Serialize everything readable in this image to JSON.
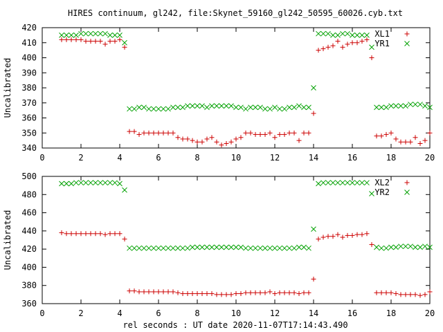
{
  "title": "HIRES continuum, gl242, file:Skynet_59160_gl242_50595_60026.cyb.txt",
  "xlabel": "rel seconds : UT date 2020-11-07T17:14:43.490",
  "colors": {
    "red": "#cc0000",
    "green": "#00a000",
    "axis": "#000000"
  },
  "chart_data": [
    {
      "type": "scatter",
      "ylabel": "Uncalibrated",
      "xlim": [
        0,
        20
      ],
      "ylim": [
        340,
        420
      ],
      "xticks": [
        0,
        2,
        4,
        6,
        8,
        10,
        12,
        14,
        16,
        18,
        20
      ],
      "yticks": [
        340,
        350,
        360,
        370,
        380,
        390,
        400,
        410,
        420
      ],
      "legend_position": "top-right",
      "series": [
        {
          "name": "XL1",
          "marker": "plus",
          "color": "#cc0000",
          "x": [
            1.0,
            1.25,
            1.5,
            1.75,
            2.0,
            2.25,
            2.5,
            2.75,
            3.0,
            3.25,
            3.5,
            3.75,
            4.0,
            4.25,
            4.5,
            4.75,
            5.0,
            5.25,
            5.5,
            5.75,
            6.0,
            6.25,
            6.5,
            6.75,
            7.0,
            7.25,
            7.5,
            7.75,
            8.0,
            8.25,
            8.5,
            8.75,
            9.0,
            9.25,
            9.5,
            9.75,
            10.0,
            10.25,
            10.5,
            10.75,
            11.0,
            11.25,
            11.5,
            11.75,
            12.0,
            12.25,
            12.5,
            12.75,
            13.0,
            13.25,
            13.5,
            13.75,
            14.0,
            14.25,
            14.5,
            14.75,
            15.0,
            15.25,
            15.5,
            15.75,
            16.0,
            16.25,
            16.5,
            16.75,
            17.0,
            17.25,
            17.5,
            17.75,
            18.0,
            18.25,
            18.5,
            18.75,
            19.0,
            19.25,
            19.5,
            19.75,
            20.0
          ],
          "y": [
            412,
            412,
            412,
            412,
            412,
            411,
            411,
            411,
            411,
            409,
            411,
            411,
            412,
            407,
            351,
            351,
            349,
            350,
            350,
            350,
            350,
            350,
            350,
            350,
            347,
            346,
            346,
            345,
            344,
            344,
            346,
            347,
            344,
            342,
            343,
            344,
            346,
            347,
            350,
            350,
            349,
            349,
            349,
            350,
            347,
            349,
            349,
            350,
            350,
            345,
            350,
            350,
            363,
            405,
            406,
            407,
            408,
            411,
            407,
            409,
            410,
            410,
            411,
            412,
            400,
            348,
            348,
            349,
            350,
            346,
            344,
            344,
            344,
            347,
            343,
            345,
            350
          ]
        },
        {
          "name": "YR1",
          "marker": "cross",
          "color": "#00a000",
          "x": [
            1.0,
            1.25,
            1.5,
            1.75,
            2.0,
            2.25,
            2.5,
            2.75,
            3.0,
            3.25,
            3.5,
            3.75,
            4.0,
            4.25,
            4.5,
            4.75,
            5.0,
            5.25,
            5.5,
            5.75,
            6.0,
            6.25,
            6.5,
            6.75,
            7.0,
            7.25,
            7.5,
            7.75,
            8.0,
            8.25,
            8.5,
            8.75,
            9.0,
            9.25,
            9.5,
            9.75,
            10.0,
            10.25,
            10.5,
            10.75,
            11.0,
            11.25,
            11.5,
            11.75,
            12.0,
            12.25,
            12.5,
            12.75,
            13.0,
            13.25,
            13.5,
            13.75,
            14.0,
            14.25,
            14.5,
            14.75,
            15.0,
            15.25,
            15.5,
            15.75,
            16.0,
            16.25,
            16.5,
            16.75,
            17.0,
            17.25,
            17.5,
            17.75,
            18.0,
            18.25,
            18.5,
            18.75,
            19.0,
            19.25,
            19.5,
            19.75,
            20.0
          ],
          "y": [
            415,
            415,
            415,
            415,
            416,
            416,
            416,
            416,
            416,
            416,
            415,
            415,
            415,
            410,
            366,
            366,
            367,
            367,
            366,
            366,
            366,
            366,
            366,
            367,
            367,
            367,
            368,
            368,
            368,
            368,
            367,
            368,
            368,
            368,
            368,
            368,
            367,
            367,
            366,
            367,
            367,
            367,
            366,
            366,
            367,
            366,
            366,
            367,
            367,
            368,
            367,
            367,
            380,
            416,
            416,
            416,
            415,
            415,
            416,
            416,
            415,
            415,
            415,
            415,
            407,
            367,
            367,
            367,
            368,
            368,
            368,
            368,
            369,
            369,
            369,
            368,
            367
          ]
        }
      ]
    },
    {
      "type": "scatter",
      "ylabel": "Uncalibrated",
      "xlim": [
        0,
        20
      ],
      "ylim": [
        360,
        500
      ],
      "xticks": [
        0,
        2,
        4,
        6,
        8,
        10,
        12,
        14,
        16,
        18,
        20
      ],
      "yticks": [
        360,
        380,
        400,
        420,
        440,
        460,
        480,
        500
      ],
      "legend_position": "top-right",
      "series": [
        {
          "name": "XL2",
          "marker": "plus",
          "color": "#cc0000",
          "x": [
            1.0,
            1.25,
            1.5,
            1.75,
            2.0,
            2.25,
            2.5,
            2.75,
            3.0,
            3.25,
            3.5,
            3.75,
            4.0,
            4.25,
            4.5,
            4.75,
            5.0,
            5.25,
            5.5,
            5.75,
            6.0,
            6.25,
            6.5,
            6.75,
            7.0,
            7.25,
            7.5,
            7.75,
            8.0,
            8.25,
            8.5,
            8.75,
            9.0,
            9.25,
            9.5,
            9.75,
            10.0,
            10.25,
            10.5,
            10.75,
            11.0,
            11.25,
            11.5,
            11.75,
            12.0,
            12.25,
            12.5,
            12.75,
            13.0,
            13.25,
            13.5,
            13.75,
            14.0,
            14.25,
            14.5,
            14.75,
            15.0,
            15.25,
            15.5,
            15.75,
            16.0,
            16.25,
            16.5,
            16.75,
            17.0,
            17.25,
            17.5,
            17.75,
            18.0,
            18.25,
            18.5,
            18.75,
            19.0,
            19.25,
            19.5,
            19.75,
            20.0
          ],
          "y": [
            438,
            437,
            437,
            437,
            437,
            437,
            437,
            437,
            437,
            436,
            437,
            437,
            437,
            431,
            374,
            374,
            373,
            373,
            373,
            373,
            373,
            373,
            373,
            373,
            372,
            371,
            371,
            371,
            371,
            371,
            371,
            371,
            370,
            370,
            370,
            370,
            371,
            371,
            372,
            372,
            372,
            372,
            372,
            373,
            371,
            372,
            372,
            372,
            372,
            371,
            372,
            372,
            387,
            431,
            433,
            434,
            434,
            436,
            433,
            435,
            435,
            436,
            436,
            437,
            425,
            372,
            372,
            372,
            372,
            371,
            370,
            370,
            370,
            370,
            369,
            370,
            373
          ]
        },
        {
          "name": "YR2",
          "marker": "cross",
          "color": "#00a000",
          "x": [
            1.0,
            1.25,
            1.5,
            1.75,
            2.0,
            2.25,
            2.5,
            2.75,
            3.0,
            3.25,
            3.5,
            3.75,
            4.0,
            4.25,
            4.5,
            4.75,
            5.0,
            5.25,
            5.5,
            5.75,
            6.0,
            6.25,
            6.5,
            6.75,
            7.0,
            7.25,
            7.5,
            7.75,
            8.0,
            8.25,
            8.5,
            8.75,
            9.0,
            9.25,
            9.5,
            9.75,
            10.0,
            10.25,
            10.5,
            10.75,
            11.0,
            11.25,
            11.5,
            11.75,
            12.0,
            12.25,
            12.5,
            12.75,
            13.0,
            13.25,
            13.5,
            13.75,
            14.0,
            14.25,
            14.5,
            14.75,
            15.0,
            15.25,
            15.5,
            15.75,
            16.0,
            16.25,
            16.5,
            16.75,
            17.0,
            17.25,
            17.5,
            17.75,
            18.0,
            18.25,
            18.5,
            18.75,
            19.0,
            19.25,
            19.5,
            19.75,
            20.0
          ],
          "y": [
            492,
            492,
            492,
            493,
            493,
            493,
            493,
            493,
            493,
            493,
            493,
            493,
            492,
            485,
            421,
            421,
            421,
            421,
            421,
            421,
            421,
            421,
            421,
            421,
            421,
            421,
            421,
            422,
            422,
            422,
            422,
            422,
            422,
            422,
            422,
            422,
            422,
            422,
            421,
            421,
            421,
            421,
            421,
            421,
            421,
            421,
            421,
            421,
            421,
            422,
            422,
            421,
            442,
            492,
            493,
            493,
            493,
            493,
            493,
            493,
            493,
            493,
            493,
            493,
            481,
            422,
            421,
            421,
            422,
            422,
            423,
            423,
            423,
            422,
            422,
            423,
            422
          ]
        }
      ]
    }
  ]
}
